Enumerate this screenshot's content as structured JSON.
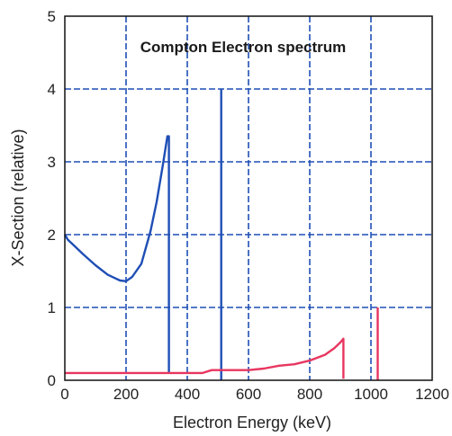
{
  "chart_data": {
    "type": "line",
    "title": "Compton Electron spectrum",
    "xlabel": "Electron Energy (keV)",
    "ylabel": "X-Section (relative)",
    "xlim": [
      0,
      1200
    ],
    "ylim": [
      0,
      5
    ],
    "xticks": [
      "0",
      "200",
      "400",
      "600",
      "800",
      "1000",
      "1200"
    ],
    "yticks": [
      "0",
      "1",
      "2",
      "3",
      "4",
      "5"
    ],
    "grid": true,
    "gridColor": "#1f4fb5",
    "series": [
      {
        "color": "#1f4fb5",
        "x": [
          0,
          10,
          30,
          60,
          100,
          140,
          180,
          200,
          220,
          250,
          280,
          300,
          320,
          335,
          340,
          340
        ],
        "y": [
          2.0,
          1.93,
          1.85,
          1.73,
          1.58,
          1.45,
          1.37,
          1.36,
          1.42,
          1.6,
          2.05,
          2.45,
          2.95,
          3.35,
          3.35,
          0.1
        ]
      },
      {
        "color": "#1f4fb5",
        "x": [
          511,
          511
        ],
        "y": [
          0,
          4.0
        ]
      },
      {
        "color": "#e8365f",
        "x": [
          0,
          100,
          200,
          300,
          450,
          480,
          520,
          600,
          650,
          700,
          750,
          800,
          850,
          880,
          900,
          910,
          910
        ],
        "y": [
          0.1,
          0.1,
          0.1,
          0.1,
          0.1,
          0.14,
          0.14,
          0.14,
          0.16,
          0.2,
          0.22,
          0.27,
          0.35,
          0.44,
          0.52,
          0.57,
          0.02
        ]
      },
      {
        "color": "#e8365f",
        "x": [
          1022,
          1022
        ],
        "y": [
          0,
          1.0
        ]
      }
    ]
  }
}
